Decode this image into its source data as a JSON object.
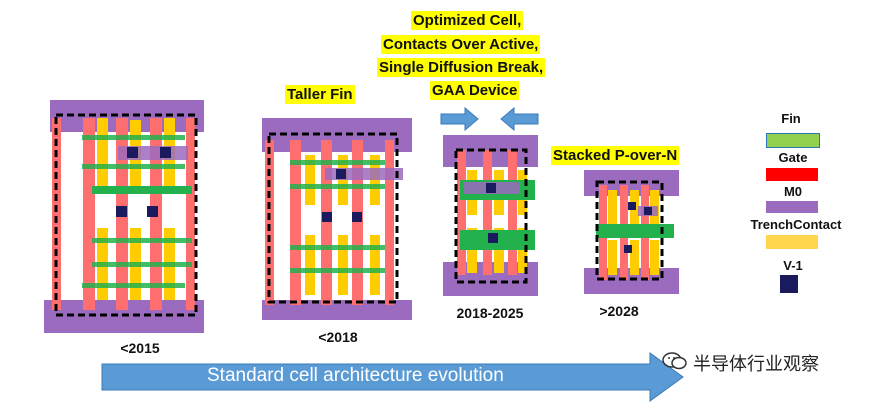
{
  "headings": {
    "optimized": [
      "Optimized Cell,",
      "Contacts Over Active,",
      "Single Diffusion Break,",
      "GAA Device"
    ],
    "taller_fin": "Taller Fin",
    "stacked": "Stacked P-over-N"
  },
  "captions": {
    "c1": "<2015",
    "c2": "<2018",
    "c3": "2018-2025",
    "c4": ">2028"
  },
  "legend": {
    "fin": "Fin",
    "gate": "Gate",
    "m0": "M0",
    "trench": "TrenchContact",
    "v1": "V-1"
  },
  "colors": {
    "fin": "#22b14c",
    "gate": "#ff0000",
    "m0": "#9b6bc0",
    "trench": "#ffcc00",
    "v1": "#1a1a5e",
    "arrow": "#5b9bd5"
  },
  "timeline": "Standard cell architecture evolution",
  "watermark": "半导体行业观察"
}
